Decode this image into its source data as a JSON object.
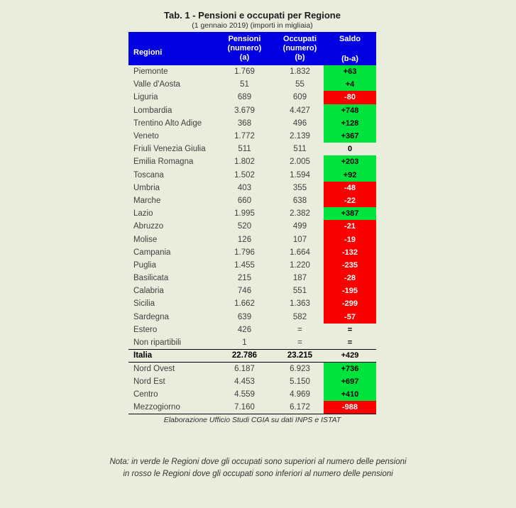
{
  "title": "Tab. 1 - Pensioni e occupati per Regione",
  "subtitle": "(1 gennaio 2019) (importi in migliaia)",
  "table": {
    "headers": {
      "regioni": "Regioni",
      "pensioni_line1": "Pensioni",
      "pensioni_line2": "(numero)",
      "pensioni_line3": "(a)",
      "occupati_line1": "Occupati",
      "occupati_line2": "(numero)",
      "occupati_line3": "(b)",
      "saldo_line1": "Saldo",
      "saldo_line2": "(b-a)"
    },
    "rows": [
      {
        "region": "Piemonte",
        "pensioni": "1.769",
        "occupati": "1.832",
        "saldo": "+63",
        "saldo_bg": "green"
      },
      {
        "region": "Valle d'Aosta",
        "pensioni": "51",
        "occupati": "55",
        "saldo": "+4",
        "saldo_bg": "green"
      },
      {
        "region": "Liguria",
        "pensioni": "689",
        "occupati": "609",
        "saldo": "-80",
        "saldo_bg": "red"
      },
      {
        "region": "Lombardia",
        "pensioni": "3.679",
        "occupati": "4.427",
        "saldo": "+748",
        "saldo_bg": "green"
      },
      {
        "region": "Trentino Alto Adige",
        "pensioni": "368",
        "occupati": "496",
        "saldo": "+128",
        "saldo_bg": "green"
      },
      {
        "region": "Veneto",
        "pensioni": "1.772",
        "occupati": "2.139",
        "saldo": "+367",
        "saldo_bg": "green"
      },
      {
        "region": "Friuli Venezia Giulia",
        "pensioni": "511",
        "occupati": "511",
        "saldo": "0",
        "saldo_bg": "none"
      },
      {
        "region": "Emilia Romagna",
        "pensioni": "1.802",
        "occupati": "2.005",
        "saldo": "+203",
        "saldo_bg": "green"
      },
      {
        "region": "Toscana",
        "pensioni": "1.502",
        "occupati": "1.594",
        "saldo": "+92",
        "saldo_bg": "green"
      },
      {
        "region": "Umbria",
        "pensioni": "403",
        "occupati": "355",
        "saldo": "-48",
        "saldo_bg": "red"
      },
      {
        "region": "Marche",
        "pensioni": "660",
        "occupati": "638",
        "saldo": "-22",
        "saldo_bg": "red"
      },
      {
        "region": "Lazio",
        "pensioni": "1.995",
        "occupati": "2.382",
        "saldo": "+387",
        "saldo_bg": "green"
      },
      {
        "region": "Abruzzo",
        "pensioni": "520",
        "occupati": "499",
        "saldo": "-21",
        "saldo_bg": "red"
      },
      {
        "region": "Molise",
        "pensioni": "126",
        "occupati": "107",
        "saldo": "-19",
        "saldo_bg": "red"
      },
      {
        "region": "Campania",
        "pensioni": "1.796",
        "occupati": "1.664",
        "saldo": "-132",
        "saldo_bg": "red"
      },
      {
        "region": "Puglia",
        "pensioni": "1.455",
        "occupati": "1.220",
        "saldo": "-235",
        "saldo_bg": "red"
      },
      {
        "region": "Basilicata",
        "pensioni": "215",
        "occupati": "187",
        "saldo": "-28",
        "saldo_bg": "red"
      },
      {
        "region": "Calabria",
        "pensioni": "746",
        "occupati": "551",
        "saldo": "-195",
        "saldo_bg": "red"
      },
      {
        "region": "Sicilia",
        "pensioni": "1.662",
        "occupati": "1.363",
        "saldo": "-299",
        "saldo_bg": "red"
      },
      {
        "region": "Sardegna",
        "pensioni": "639",
        "occupati": "582",
        "saldo": "-57",
        "saldo_bg": "red"
      },
      {
        "region": "Estero",
        "pensioni": "426",
        "occupati": "=",
        "saldo": "=",
        "saldo_bg": "none"
      },
      {
        "region": "Non ripartibili",
        "pensioni": "1",
        "occupati": "=",
        "saldo": "=",
        "saldo_bg": "none"
      },
      {
        "region": "Italia",
        "pensioni": "22.786",
        "occupati": "23.215",
        "saldo": "+429",
        "saldo_bg": "none",
        "bold": true,
        "rule_top": true,
        "rule_bottom": true
      },
      {
        "region": "Nord Ovest",
        "pensioni": "6.187",
        "occupati": "6.923",
        "saldo": "+736",
        "saldo_bg": "green"
      },
      {
        "region": "Nord Est",
        "pensioni": "4.453",
        "occupati": "5.150",
        "saldo": "+697",
        "saldo_bg": "green"
      },
      {
        "region": "Centro",
        "pensioni": "4.559",
        "occupati": "4.969",
        "saldo": "+410",
        "saldo_bg": "green"
      },
      {
        "region": "Mezzogiorno",
        "pensioni": "7.160",
        "occupati": "6.172",
        "saldo": "-988",
        "saldo_bg": "red",
        "rule_bottom": true
      }
    ]
  },
  "footer": "Elaborazione Ufficio Studi CGIA su dati INPS  e ISTAT",
  "note": {
    "line1": "Nota: in verde le Regioni dove gli occupati sono superiori al numero delle pensioni",
    "line2": "in rosso le Regioni dove gli occupati sono inferiori al numero delle pensioni"
  },
  "colors": {
    "page_bg": "#E9EDDC",
    "header_bg": "#0000E0",
    "header_text": "#FFFFFF",
    "positive": "#00E23C",
    "negative": "#FB0000",
    "body_text": "#3F3F3F"
  }
}
